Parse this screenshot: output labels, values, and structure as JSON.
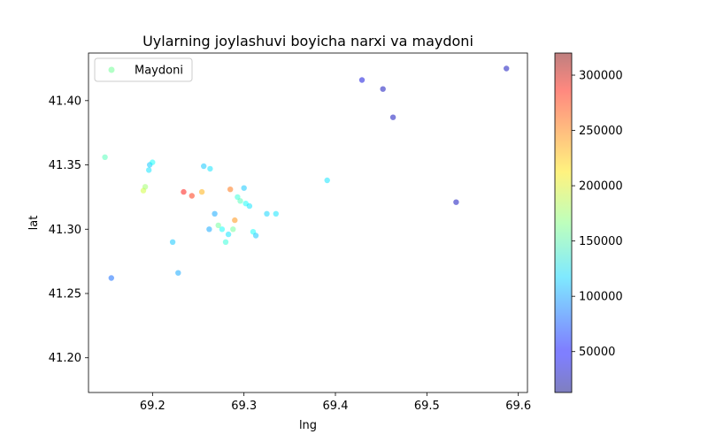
{
  "chart_data": {
    "type": "scatter",
    "title": "Uylarning joylashuvi boyicha narxi va maydoni",
    "xlabel": "lng",
    "ylabel": "lat",
    "xlim": [
      69.13,
      69.61
    ],
    "ylim": [
      41.173,
      41.437
    ],
    "xticks": [
      69.2,
      69.3,
      69.4,
      69.5,
      69.6
    ],
    "xtick_labels": [
      "69.2",
      "69.3",
      "69.4",
      "69.5",
      "69.6"
    ],
    "yticks": [
      41.2,
      41.25,
      41.3,
      41.35,
      41.4
    ],
    "ytick_labels": [
      "41.20",
      "41.25",
      "41.30",
      "41.35",
      "41.40"
    ],
    "grid": false,
    "legend": {
      "position": "top-left",
      "entries": [
        "Maydoni"
      ],
      "marker_color": "#7fffa0"
    },
    "colorbar": {
      "colormap": "jet",
      "alpha": 0.5,
      "min": 13000,
      "max": 320000,
      "ticks": [
        50000,
        100000,
        150000,
        200000,
        250000,
        300000
      ],
      "tick_labels": [
        "50000",
        "100000",
        "150000",
        "200000",
        "250000",
        "300000"
      ]
    },
    "points": [
      {
        "x": 69.587,
        "y": 41.425,
        "c": 30000
      },
      {
        "x": 69.429,
        "y": 41.416,
        "c": 40000
      },
      {
        "x": 69.452,
        "y": 41.409,
        "c": 30000
      },
      {
        "x": 69.463,
        "y": 41.387,
        "c": 30000
      },
      {
        "x": 69.532,
        "y": 41.321,
        "c": 30000
      },
      {
        "x": 69.148,
        "y": 41.356,
        "c": 150000
      },
      {
        "x": 69.19,
        "y": 41.33,
        "c": 190000
      },
      {
        "x": 69.192,
        "y": 41.333,
        "c": 175000
      },
      {
        "x": 69.196,
        "y": 41.346,
        "c": 120000
      },
      {
        "x": 69.197,
        "y": 41.35,
        "c": 110000
      },
      {
        "x": 69.2,
        "y": 41.352,
        "c": 130000
      },
      {
        "x": 69.234,
        "y": 41.329,
        "c": 280000
      },
      {
        "x": 69.243,
        "y": 41.326,
        "c": 270000
      },
      {
        "x": 69.254,
        "y": 41.329,
        "c": 230000
      },
      {
        "x": 69.256,
        "y": 41.349,
        "c": 110000
      },
      {
        "x": 69.263,
        "y": 41.347,
        "c": 120000
      },
      {
        "x": 69.272,
        "y": 41.303,
        "c": 160000
      },
      {
        "x": 69.276,
        "y": 41.3,
        "c": 130000
      },
      {
        "x": 69.28,
        "y": 41.29,
        "c": 140000
      },
      {
        "x": 69.283,
        "y": 41.296,
        "c": 120000
      },
      {
        "x": 69.285,
        "y": 41.331,
        "c": 250000
      },
      {
        "x": 69.288,
        "y": 41.3,
        "c": 160000
      },
      {
        "x": 69.29,
        "y": 41.307,
        "c": 240000
      },
      {
        "x": 69.293,
        "y": 41.325,
        "c": 140000
      },
      {
        "x": 69.296,
        "y": 41.322,
        "c": 150000
      },
      {
        "x": 69.3,
        "y": 41.332,
        "c": 110000
      },
      {
        "x": 69.302,
        "y": 41.32,
        "c": 130000
      },
      {
        "x": 69.306,
        "y": 41.318,
        "c": 120000
      },
      {
        "x": 69.31,
        "y": 41.298,
        "c": 130000
      },
      {
        "x": 69.313,
        "y": 41.295,
        "c": 110000
      },
      {
        "x": 69.325,
        "y": 41.312,
        "c": 115000
      },
      {
        "x": 69.335,
        "y": 41.312,
        "c": 120000
      },
      {
        "x": 69.391,
        "y": 41.338,
        "c": 120000
      },
      {
        "x": 69.228,
        "y": 41.266,
        "c": 100000
      },
      {
        "x": 69.222,
        "y": 41.29,
        "c": 110000
      },
      {
        "x": 69.262,
        "y": 41.3,
        "c": 100000
      },
      {
        "x": 69.268,
        "y": 41.312,
        "c": 100000
      },
      {
        "x": 69.155,
        "y": 41.262,
        "c": 80000
      }
    ]
  }
}
